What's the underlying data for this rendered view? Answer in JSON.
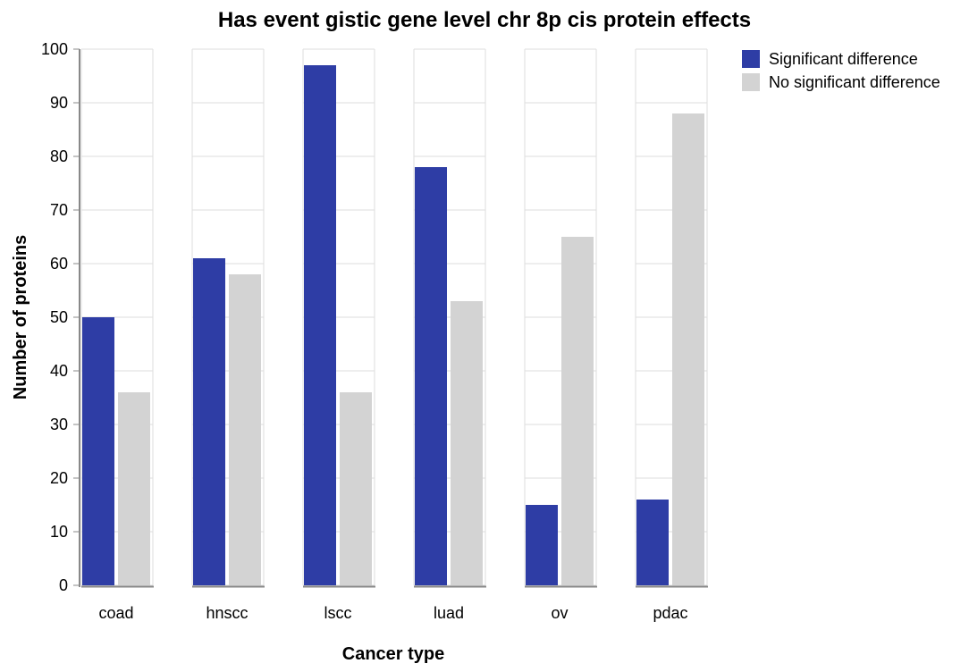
{
  "chart_data": {
    "type": "bar",
    "title": "Has event gistic gene level chr 8p cis protein effects",
    "xlabel": "Cancer type",
    "ylabel": "Number of proteins",
    "ylim": [
      0,
      100
    ],
    "yticks": [
      0,
      10,
      20,
      30,
      40,
      50,
      60,
      70,
      80,
      90,
      100
    ],
    "grid": true,
    "legend_position": "top-right",
    "categories": [
      "coad",
      "hnscc",
      "lscc",
      "luad",
      "ov",
      "pdac"
    ],
    "series": [
      {
        "name": "Significant difference",
        "color": "#2e3da5",
        "values": [
          50,
          61,
          97,
          78,
          15,
          16
        ]
      },
      {
        "name": "No significant difference",
        "color": "#d3d3d3",
        "values": [
          36,
          58,
          36,
          53,
          65,
          88
        ]
      }
    ]
  }
}
